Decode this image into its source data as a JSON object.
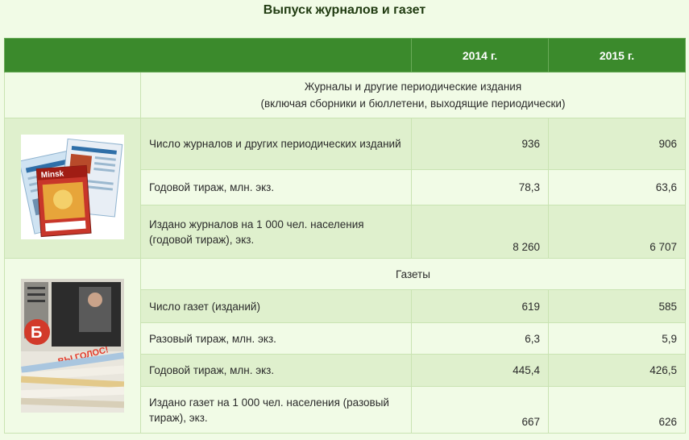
{
  "title": "Выпуск журналов и газет",
  "columns": [
    "2014 г.",
    "2015 г."
  ],
  "magazines": {
    "heading_line1": "Журналы и другие периодические издания",
    "heading_line2": "(включая сборники и бюллетени, выходящие периодически)",
    "rows": [
      {
        "label": "Число журналов и других периодических изданий",
        "v2014": "936",
        "v2015": "906"
      },
      {
        "label": "Годовой тираж, млн. экз.",
        "v2014": "78,3",
        "v2015": "63,6"
      },
      {
        "label": "Издано журналов на 1 000 чел. населения (годовой тираж), экз.",
        "v2014": "8 260",
        "v2015": "6 707"
      }
    ]
  },
  "newspapers": {
    "heading": "Газеты",
    "rows": [
      {
        "label": "Число газет (изданий)",
        "v2014": "619",
        "v2015": "585"
      },
      {
        "label": "Разовый тираж, млн. экз.",
        "v2014": "6,3",
        "v2015": "5,9"
      },
      {
        "label": "Годовой тираж, млн. экз.",
        "v2014": "445,4",
        "v2015": "426,5"
      },
      {
        "label": "Издано газет на 1 000 чел. населения (разовый тираж), экз.",
        "v2014": "667",
        "v2015": "626"
      }
    ]
  },
  "images": {
    "magazine_cover_text": "Minsk",
    "newspaper_headline": "ВЫ ГОЛОС!"
  },
  "colors": {
    "header_green": "#3b8a2c",
    "row_alt": "#dff0cd",
    "background": "#f1fbe6"
  }
}
